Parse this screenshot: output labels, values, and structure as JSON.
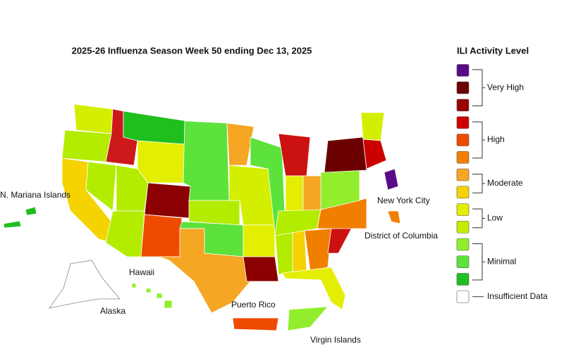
{
  "title": "2025-26 Influenza Season Week 50 ending Dec 13, 2025",
  "legend": {
    "title": "ILI Activity Level",
    "swatches": [
      "#5a0a86",
      "#6b0000",
      "#990000",
      "#cc0000",
      "#ee4b00",
      "#f07f00",
      "#f5a623",
      "#f5d300",
      "#e4ee00",
      "#c4ec00",
      "#92ee2c",
      "#5ce23a",
      "#1fbf1f"
    ],
    "groups": [
      "Very High",
      "High",
      "Moderate",
      "Low",
      "Minimal"
    ],
    "insufficient": "Insufficient Data"
  },
  "labels": [
    "N. Mariana Islands",
    "New York City",
    "District of Columbia",
    "Hawaii",
    "Alaska",
    "Puerto Rico",
    "Virgin Islands"
  ]
}
